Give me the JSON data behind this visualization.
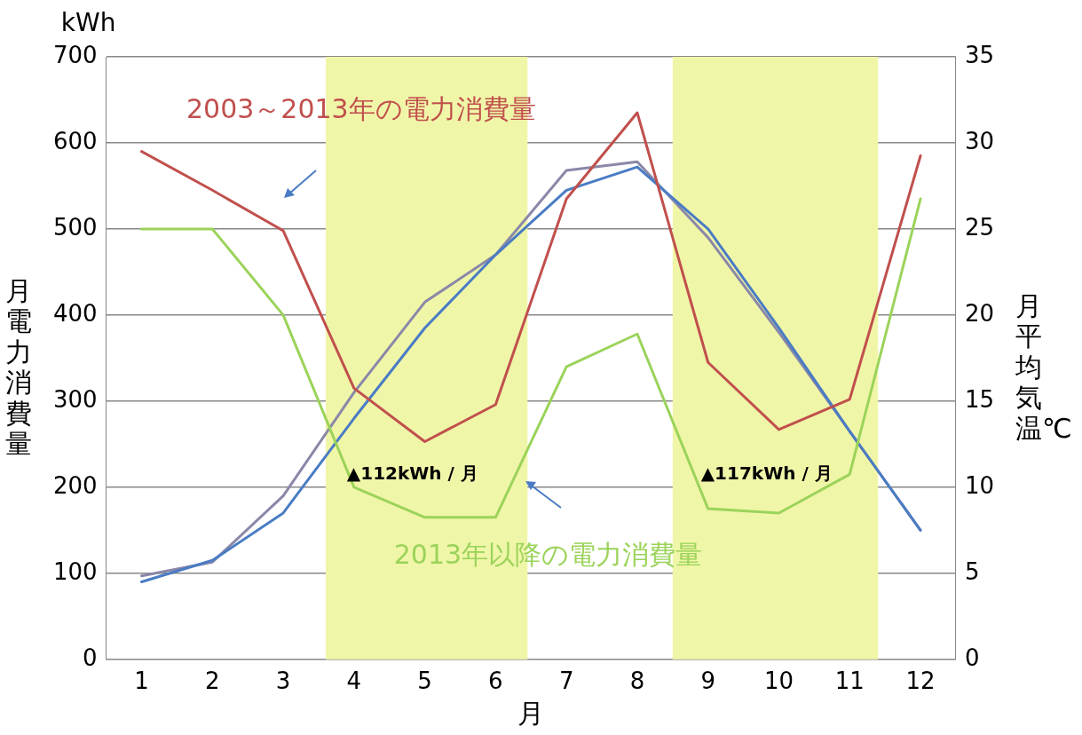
{
  "chart_data": {
    "type": "line",
    "xlabel": "月",
    "ylabel": "月電力消費量",
    "y2label": "月平均気温℃",
    "x": [
      1,
      2,
      3,
      4,
      5,
      6,
      7,
      8,
      9,
      10,
      11,
      12
    ],
    "xlim": [
      0.5,
      12.5
    ],
    "xticks": [
      1,
      2,
      3,
      4,
      5,
      6,
      7,
      8,
      9,
      10,
      11,
      12
    ],
    "ylim": [
      0,
      700
    ],
    "yticks": [
      0,
      100,
      200,
      300,
      400,
      500,
      600,
      700
    ],
    "y2lim": [
      0,
      35
    ],
    "y2ticks": [
      0,
      5,
      10,
      15,
      20,
      25,
      30,
      35
    ],
    "grid": "y",
    "legend": false,
    "marker": "none",
    "series": [
      {
        "name": "2003～2013年の電力消費量",
        "color": "#c0504d",
        "values": [
          590,
          545,
          498,
          315,
          253,
          296,
          535,
          635,
          345,
          267,
          302,
          585
        ]
      },
      {
        "name": "2013年以降の電力消費量",
        "color": "#9bd35a",
        "values": [
          500,
          500,
          400,
          200,
          165,
          165,
          340,
          378,
          175,
          170,
          215,
          535
        ]
      },
      {
        "color": "#4a7cc4",
        "axis": "y2",
        "values": [
          4.5,
          5.75,
          8.5,
          14,
          19.25,
          23.5,
          27.25,
          28.6,
          25,
          19.25,
          13.25,
          7.5
        ]
      },
      {
        "color": "#8a88a8",
        "axis": "y2",
        "values": [
          4.85,
          5.65,
          9.5,
          15.5,
          20.75,
          23.5,
          28.4,
          28.9,
          24.5,
          19,
          13.25,
          7.5
        ]
      }
    ],
    "bands": [
      {
        "axis": "x",
        "from": 3.6,
        "to": 6.45,
        "color": "#f0f6a8"
      },
      {
        "axis": "x",
        "from": 8.5,
        "to": 11.4,
        "color": "#f0f6a8"
      }
    ],
    "annotations": [
      "kWh",
      "▲112kWh / 月",
      "▲117kWh / 月"
    ]
  }
}
